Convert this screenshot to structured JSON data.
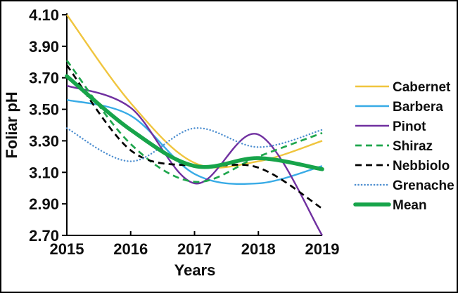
{
  "chart_data": {
    "type": "line",
    "title": "",
    "xlabel": "Years",
    "ylabel": "Foliar pH",
    "x": [
      2015,
      2016,
      2017,
      2018,
      2019
    ],
    "xtick_labels": [
      "2015",
      "2016",
      "2017",
      "2018",
      "2019"
    ],
    "ytick_labels": [
      "2.70",
      "2.90",
      "3.10",
      "3.30",
      "3.50",
      "3.70",
      "3.90",
      "4.10"
    ],
    "yticks": [
      2.7,
      2.9,
      3.1,
      3.3,
      3.5,
      3.7,
      3.9,
      4.1
    ],
    "xlim": [
      2015,
      2019
    ],
    "ylim": [
      2.7,
      4.1
    ],
    "grid": false,
    "legend_position": "right",
    "line_smoothing": "spline",
    "series": [
      {
        "name": "Cabernet",
        "color": "#f0c53e",
        "style": "solid",
        "width": 2.4,
        "values": [
          4.1,
          3.54,
          3.16,
          3.17,
          3.3
        ]
      },
      {
        "name": "Barbera",
        "color": "#38abe6",
        "style": "solid",
        "width": 2.4,
        "values": [
          3.56,
          3.46,
          3.09,
          3.03,
          3.14
        ]
      },
      {
        "name": "Pinot",
        "color": "#7030a0",
        "style": "solid",
        "width": 2.4,
        "values": [
          3.65,
          3.51,
          3.03,
          3.34,
          2.7
        ]
      },
      {
        "name": "Shiraz",
        "color": "#1fa64d",
        "style": "dashed",
        "width": 2.7,
        "values": [
          3.81,
          3.28,
          3.04,
          3.2,
          3.35
        ]
      },
      {
        "name": "Nebbiolo",
        "color": "#000000",
        "style": "dashed",
        "width": 2.7,
        "values": [
          3.78,
          3.24,
          3.14,
          3.13,
          2.87
        ]
      },
      {
        "name": "Grenache",
        "color": "#4e8fd0",
        "style": "dotted",
        "width": 2.4,
        "values": [
          3.38,
          3.17,
          3.38,
          3.26,
          3.37
        ]
      },
      {
        "name": "Mean",
        "color": "#17a44a",
        "style": "solid",
        "width": 5.6,
        "values": [
          3.71,
          3.37,
          3.14,
          3.19,
          3.12
        ]
      }
    ]
  }
}
